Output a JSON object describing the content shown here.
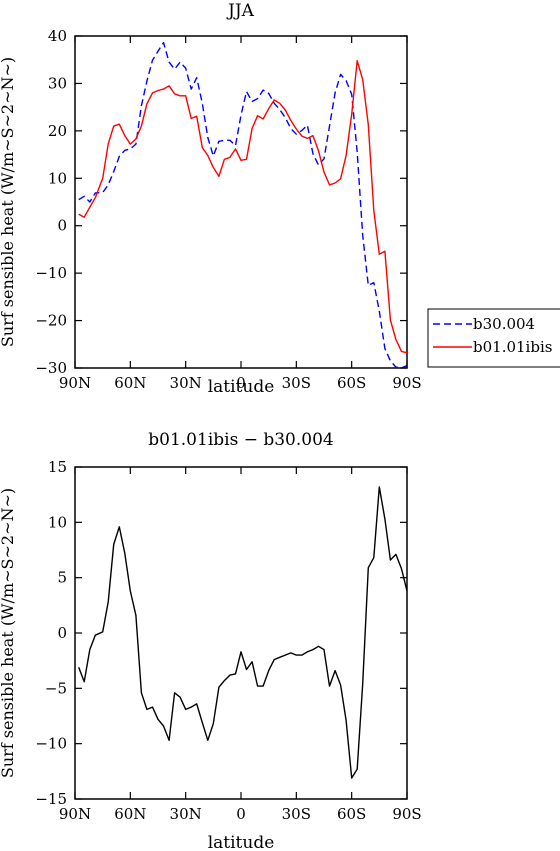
{
  "chart_data": [
    {
      "type": "line",
      "title": "JJA",
      "xlabel": "latitude",
      "ylabel": "Surf sensible heat (W/m~S~2~N~)",
      "xlim": [
        90,
        -90
      ],
      "ylim": [
        -30,
        40
      ],
      "xticks": [
        90,
        60,
        30,
        0,
        -30,
        -60,
        -90
      ],
      "xtick_labels": [
        "90N",
        "60N",
        "30N",
        "0",
        "30S",
        "60S",
        "90S"
      ],
      "yticks": [
        -30,
        -20,
        -10,
        0,
        10,
        20,
        30,
        40
      ],
      "ytick_labels": [
        "−30",
        "−20",
        "−10",
        "0",
        "10",
        "20",
        "30",
        "40"
      ],
      "legend": "right",
      "series": [
        {
          "name": "b30.004",
          "color": "#0000ff",
          "style": "dashed",
          "x": [
            88,
            85,
            82,
            79,
            75,
            72,
            69,
            66,
            63,
            60,
            57,
            54,
            51,
            48,
            45,
            42,
            39,
            36,
            33,
            30,
            27,
            24,
            21,
            18,
            15,
            12,
            9,
            6,
            3,
            0,
            -3,
            -6,
            -9,
            -12,
            -15,
            -18,
            -21,
            -24,
            -27,
            -30,
            -33,
            -36,
            -39,
            -42,
            -45,
            -48,
            -51,
            -54,
            -57,
            -60,
            -63,
            -66,
            -69,
            -72,
            -75,
            -78,
            -81,
            -84,
            -87,
            -90
          ],
          "values": [
            5.5,
            6.2,
            5.0,
            6.9,
            7.0,
            8.6,
            11.4,
            14.6,
            15.9,
            16.2,
            17.2,
            25.3,
            30.5,
            34.9,
            36.8,
            38.6,
            34.5,
            33.0,
            34.5,
            33.2,
            28.8,
            31.2,
            25.8,
            18.6,
            14.7,
            17.8,
            18.0,
            18.0,
            16.9,
            23.3,
            28.3,
            26.2,
            26.8,
            28.6,
            27.9,
            25.8,
            24.5,
            22.8,
            20.5,
            19.3,
            20.1,
            21.2,
            15.2,
            12.8,
            14.1,
            21.0,
            28.0,
            31.9,
            30.6,
            27.7,
            15.5,
            -2.0,
            -12.6,
            -12.0,
            -18.0,
            -25.9,
            -28.5,
            -29.8,
            -30.0,
            -29.5
          ]
        },
        {
          "name": "b01.01ibis",
          "color": "#ff0000",
          "style": "solid",
          "x": [
            88,
            85,
            82,
            79,
            75,
            72,
            69,
            66,
            63,
            60,
            57,
            54,
            51,
            48,
            45,
            42,
            39,
            36,
            33,
            30,
            27,
            24,
            21,
            18,
            15,
            12,
            9,
            6,
            3,
            0,
            -3,
            -6,
            -9,
            -12,
            -15,
            -18,
            -21,
            -24,
            -27,
            -30,
            -33,
            -36,
            -39,
            -42,
            -45,
            -48,
            -51,
            -54,
            -57,
            -60,
            -63,
            -66,
            -69,
            -72,
            -75,
            -78,
            -81,
            -84,
            -87,
            -90
          ],
          "values": [
            2.4,
            1.8,
            3.9,
            5.9,
            10.0,
            17.2,
            21.0,
            21.4,
            19.0,
            17.2,
            18.3,
            21.0,
            25.7,
            28.0,
            28.5,
            28.8,
            29.5,
            27.8,
            27.4,
            27.4,
            22.6,
            23.1,
            16.5,
            14.8,
            12.3,
            10.4,
            14.0,
            14.4,
            16.2,
            13.8,
            14.0,
            20.5,
            23.2,
            22.5,
            24.7,
            26.5,
            25.8,
            24.4,
            22.2,
            20.4,
            18.9,
            18.4,
            19.0,
            15.8,
            11.3,
            8.6,
            9.0,
            9.9,
            14.8,
            23.5,
            34.8,
            30.8,
            21.3,
            3.2,
            -6.0,
            -5.4,
            -19.9,
            -24.0,
            -26.5,
            -26.8
          ]
        }
      ]
    },
    {
      "type": "line",
      "title": "b01.01ibis − b30.004",
      "xlabel": "latitude",
      "ylabel": "Surf sensible heat (W/m~S~2~N~)",
      "xlim": [
        90,
        -90
      ],
      "ylim": [
        -15,
        15
      ],
      "xticks": [
        90,
        60,
        30,
        0,
        -30,
        -60,
        -90
      ],
      "xtick_labels": [
        "90N",
        "60N",
        "30N",
        "0",
        "30S",
        "60S",
        "90S"
      ],
      "yticks": [
        -15,
        -10,
        -5,
        0,
        5,
        10,
        15
      ],
      "ytick_labels": [
        "−15",
        "−10",
        "−5",
        "0",
        "5",
        "10",
        "15"
      ],
      "series": [
        {
          "color": "#000000",
          "style": "solid",
          "x": [
            88,
            85,
            82,
            79,
            75,
            72,
            69,
            66,
            63,
            60,
            57,
            54,
            51,
            48,
            45,
            42,
            39,
            36,
            33,
            30,
            27,
            24,
            21,
            18,
            15,
            12,
            9,
            6,
            3,
            0,
            -3,
            -6,
            -9,
            -12,
            -15,
            -18,
            -21,
            -24,
            -27,
            -30,
            -33,
            -36,
            -39,
            -42,
            -45,
            -48,
            -51,
            -54,
            -57,
            -60,
            -63,
            -66,
            -69,
            -72,
            -75,
            -78,
            -81,
            -84,
            -87,
            -90
          ],
          "values": [
            -3.1,
            -4.4,
            -1.5,
            -0.2,
            0.1,
            2.8,
            8.0,
            9.6,
            7.2,
            3.8,
            1.6,
            -5.4,
            -6.9,
            -6.7,
            -7.8,
            -8.4,
            -9.7,
            -5.4,
            -5.8,
            -6.9,
            -6.7,
            -6.4,
            -8.1,
            -9.7,
            -8.2,
            -4.9,
            -4.3,
            -3.8,
            -3.7,
            -1.7,
            -3.3,
            -2.6,
            -4.8,
            -4.8,
            -3.4,
            -2.4,
            -2.2,
            -2.0,
            -1.8,
            -2.0,
            -2.0,
            -1.7,
            -1.5,
            -1.2,
            -1.5,
            -4.8,
            -3.4,
            -4.7,
            -7.9,
            -13.1,
            -12.3,
            -4.6,
            5.9,
            6.8,
            13.2,
            10.3,
            6.6,
            7.1,
            5.8,
            3.8
          ]
        }
      ]
    }
  ]
}
